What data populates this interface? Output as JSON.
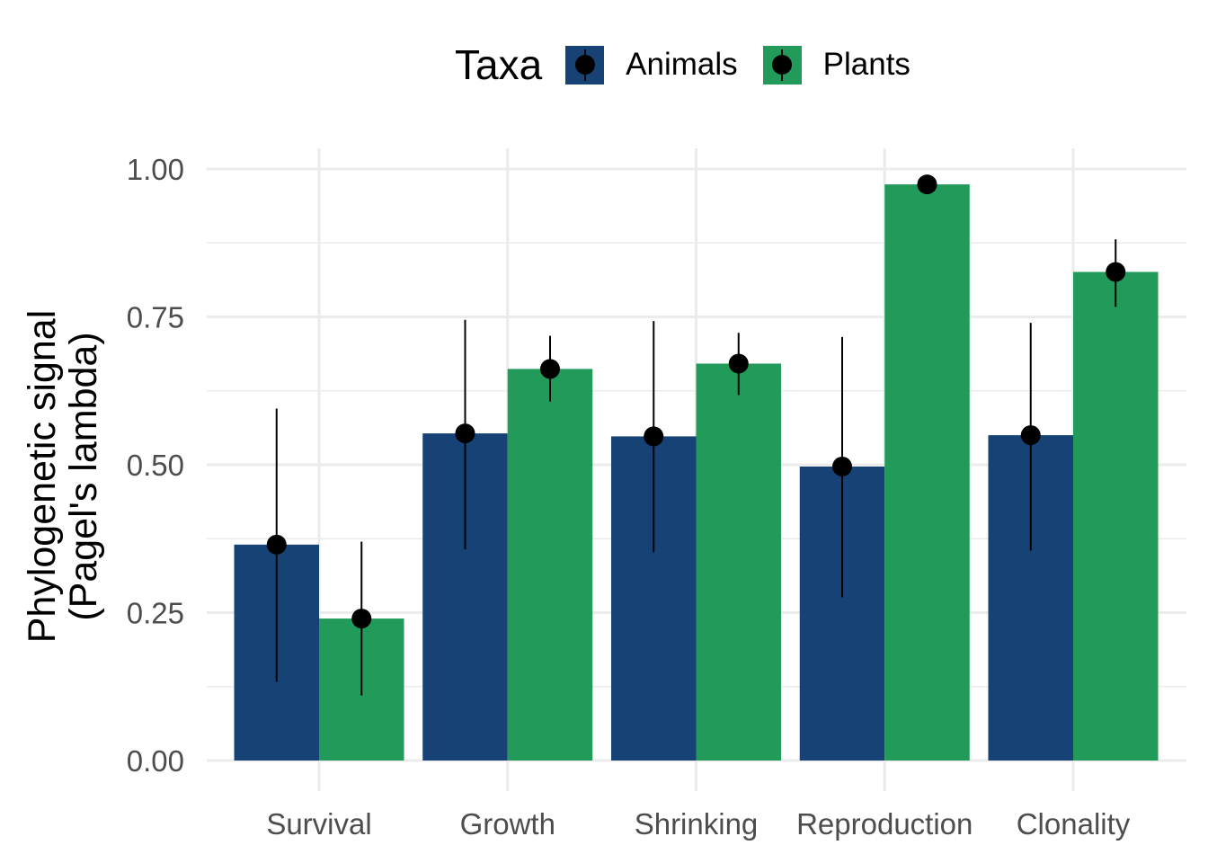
{
  "legend": {
    "title": "Taxa",
    "items": [
      {
        "label": "Animals",
        "color": "#174275"
      },
      {
        "label": "Plants",
        "color": "#219A5A"
      }
    ]
  },
  "chart_data": {
    "type": "bar",
    "ylabel_line1": "Phylogenetic signal",
    "ylabel_line2": "(Pagel's lambda)",
    "xlabel": "",
    "categories": [
      "Survival",
      "Growth",
      "Shrinking",
      "Reproduction",
      "Clonality"
    ],
    "ylim": [
      0,
      1.0
    ],
    "yticks": [
      0.0,
      0.25,
      0.5,
      0.75,
      1.0
    ],
    "ytick_labels": [
      "0.00",
      "0.25",
      "0.50",
      "0.75",
      "1.00"
    ],
    "grid": true,
    "legend_position": "top",
    "series": [
      {
        "name": "Animals",
        "color": "#174275",
        "values": [
          0.365,
          0.553,
          0.548,
          0.497,
          0.55
        ],
        "error_low": [
          0.133,
          0.357,
          0.352,
          0.276,
          0.355
        ],
        "error_high": [
          0.595,
          0.745,
          0.743,
          0.716,
          0.74
        ]
      },
      {
        "name": "Plants",
        "color": "#219A5A",
        "values": [
          0.24,
          0.662,
          0.671,
          0.974,
          0.826
        ],
        "error_low": [
          0.11,
          0.607,
          0.618,
          0.974,
          0.767
        ],
        "error_high": [
          0.37,
          0.718,
          0.723,
          0.974,
          0.881
        ]
      }
    ]
  }
}
